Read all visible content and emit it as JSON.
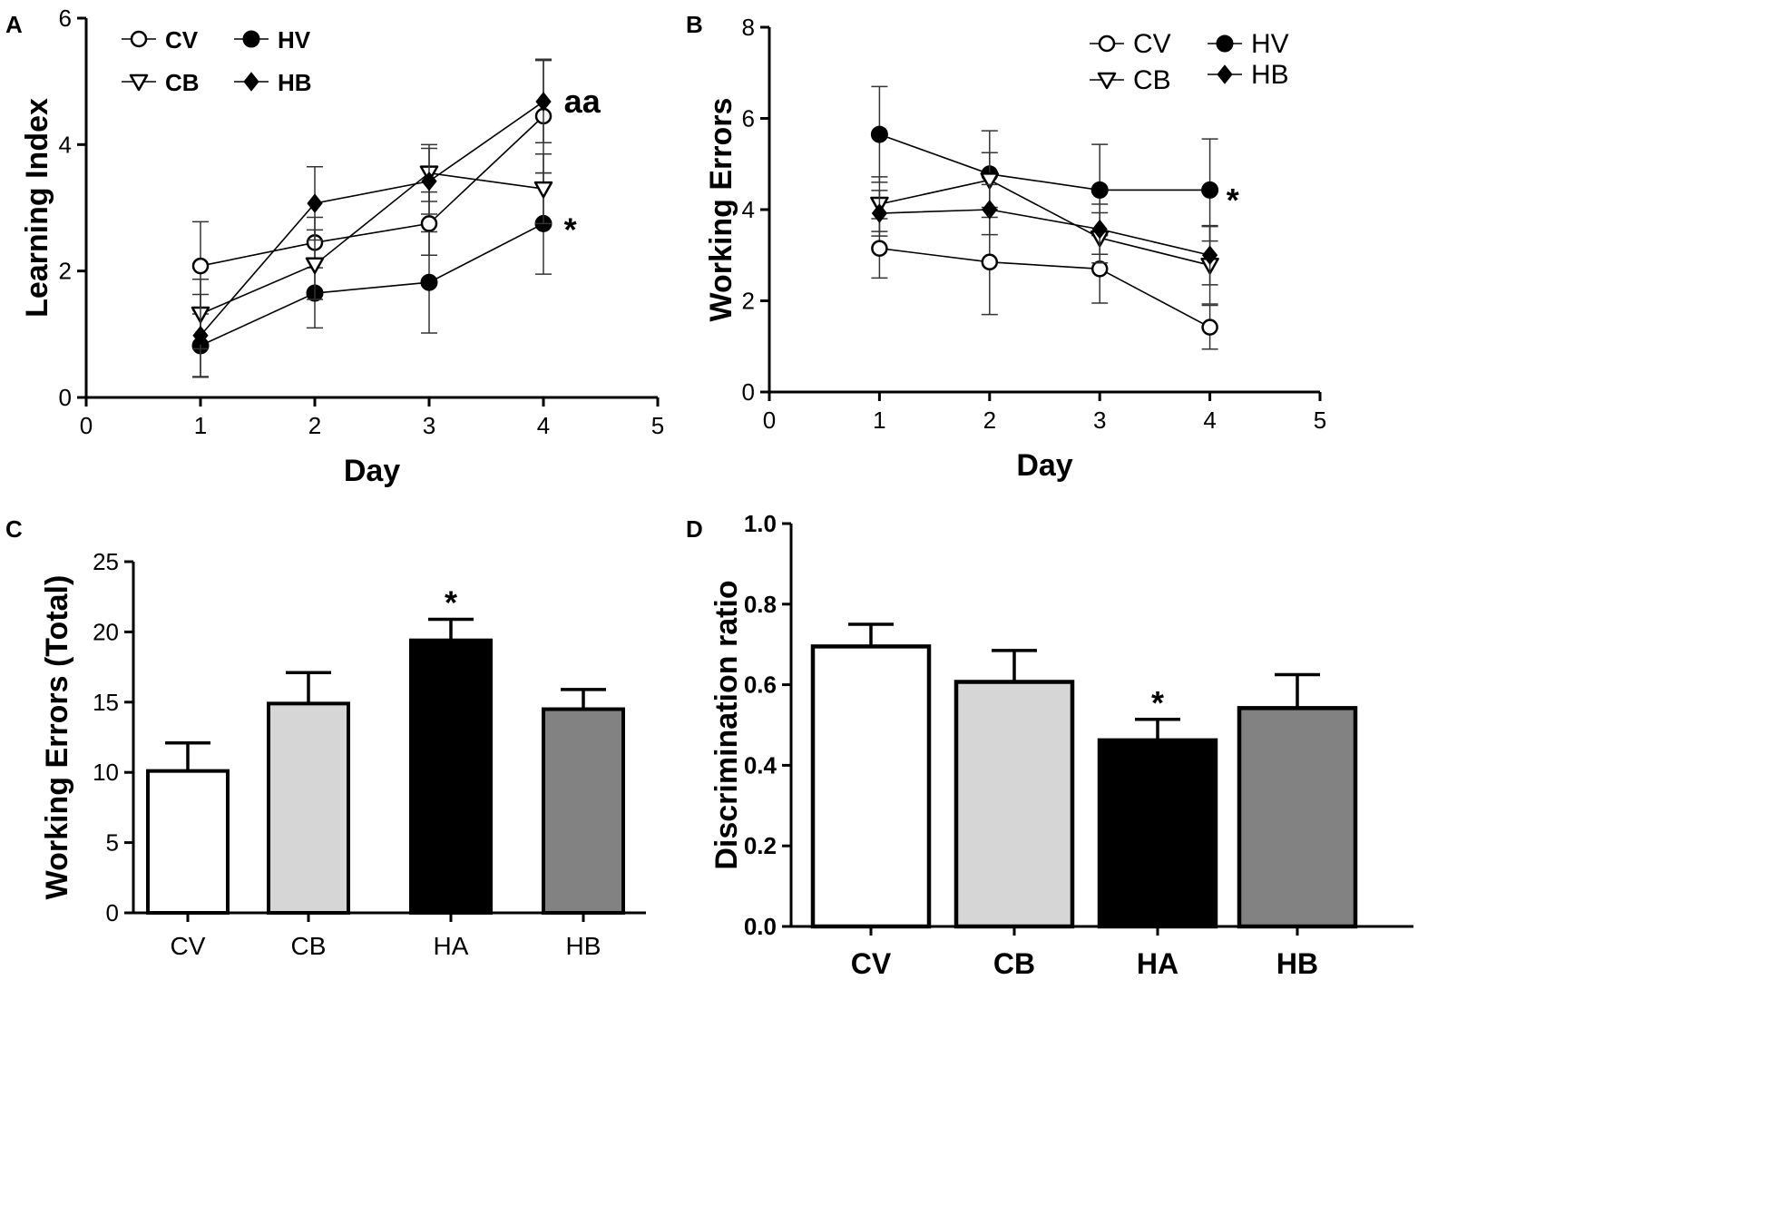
{
  "chart_data": [
    {
      "id": "A",
      "panel_label": "A",
      "type": "line",
      "title": "",
      "xlabel": "Day",
      "ylabel": "Learning Index",
      "xlim": [
        0,
        5
      ],
      "ylim": [
        0,
        6
      ],
      "xticks": [
        "0",
        "1",
        "2",
        "3",
        "4",
        "5"
      ],
      "yticks": [
        "0",
        "2",
        "4",
        "6"
      ],
      "x": [
        1,
        2,
        3,
        4
      ],
      "legend_position": "top-left",
      "series": [
        {
          "name": "CV",
          "marker": "circle-open",
          "values": [
            2.08,
            2.45,
            2.75,
            4.45
          ],
          "errors": [
            0.7,
            0.4,
            0.5,
            0.9
          ]
        },
        {
          "name": "HV",
          "marker": "circle-filled",
          "values": [
            0.82,
            1.65,
            1.82,
            2.75
          ],
          "errors": [
            0.5,
            0.55,
            0.8,
            0.8
          ]
        },
        {
          "name": "CB",
          "marker": "triangle-down-open",
          "values": [
            1.32,
            2.1,
            3.55,
            3.3
          ],
          "errors": [
            0.55,
            0.55,
            0.45,
            0.55
          ]
        },
        {
          "name": "HB",
          "marker": "diamond-filled",
          "values": [
            0.98,
            3.07,
            3.42,
            4.68
          ],
          "errors": [
            0.65,
            0.58,
            0.52,
            0.65
          ]
        }
      ],
      "annotations": [
        {
          "text": "aa",
          "x": 4.18,
          "y": 4.68
        },
        {
          "text": "*",
          "x": 4.18,
          "y": 2.65
        }
      ]
    },
    {
      "id": "B",
      "panel_label": "B",
      "type": "line",
      "title": "",
      "xlabel": "Day",
      "ylabel": "Working Errors",
      "xlim": [
        0,
        5
      ],
      "ylim": [
        0,
        8
      ],
      "xticks": [
        "0",
        "1",
        "2",
        "3",
        "4",
        "5"
      ],
      "yticks": [
        "0",
        "2",
        "4",
        "6",
        "8"
      ],
      "x": [
        1,
        2,
        3,
        4
      ],
      "legend_position": "top-right",
      "series": [
        {
          "name": "CV",
          "marker": "circle-open",
          "values": [
            3.15,
            2.85,
            2.7,
            1.42
          ],
          "errors": [
            0.65,
            1.15,
            0.75,
            0.48
          ]
        },
        {
          "name": "HV",
          "marker": "circle-filled",
          "values": [
            5.65,
            4.78,
            4.43,
            4.43
          ],
          "errors": [
            1.05,
            0.95,
            1.0,
            1.12
          ]
        },
        {
          "name": "CB",
          "marker": "triangle-down-open",
          "values": [
            4.12,
            4.65,
            3.38,
            2.78
          ],
          "errors": [
            0.6,
            0.6,
            0.55,
            0.85
          ]
        },
        {
          "name": "HB",
          "marker": "diamond-filled",
          "values": [
            3.92,
            4.0,
            3.57,
            3.0
          ],
          "errors": [
            0.5,
            0.55,
            0.55,
            0.65
          ]
        }
      ],
      "annotations": [
        {
          "text": "*",
          "x": 4.15,
          "y": 4.2
        }
      ]
    },
    {
      "id": "C",
      "panel_label": "C",
      "type": "bar",
      "title": "",
      "xlabel": "",
      "ylabel": "Working Errors (Total)",
      "ylim": [
        0,
        25
      ],
      "yticks": [
        "0",
        "5",
        "10",
        "15",
        "20",
        "25"
      ],
      "categories": [
        "CV",
        "CB",
        "HA",
        "HB"
      ],
      "values": [
        10.1,
        14.9,
        19.4,
        14.5
      ],
      "errors": [
        2.0,
        2.2,
        1.5,
        1.4
      ],
      "colors": [
        "#ffffff",
        "#d6d6d6",
        "#000000",
        "#828282"
      ],
      "annotations": [
        {
          "text": "*",
          "category": "HA"
        }
      ]
    },
    {
      "id": "D",
      "panel_label": "D",
      "type": "bar",
      "title": "",
      "xlabel": "",
      "ylabel": "Discrimination ratio",
      "ylim": [
        0,
        1.0
      ],
      "yticks": [
        "0.0",
        "0.2",
        "0.4",
        "0.6",
        "0.8",
        "1.0"
      ],
      "categories": [
        "CV",
        "CB",
        "HA",
        "HB"
      ],
      "values": [
        0.695,
        0.607,
        0.462,
        0.542
      ],
      "errors": [
        0.055,
        0.078,
        0.052,
        0.083
      ],
      "colors": [
        "#ffffff",
        "#d6d6d6",
        "#000000",
        "#828282"
      ],
      "annotations": [
        {
          "text": "*",
          "category": "HA"
        }
      ]
    }
  ]
}
